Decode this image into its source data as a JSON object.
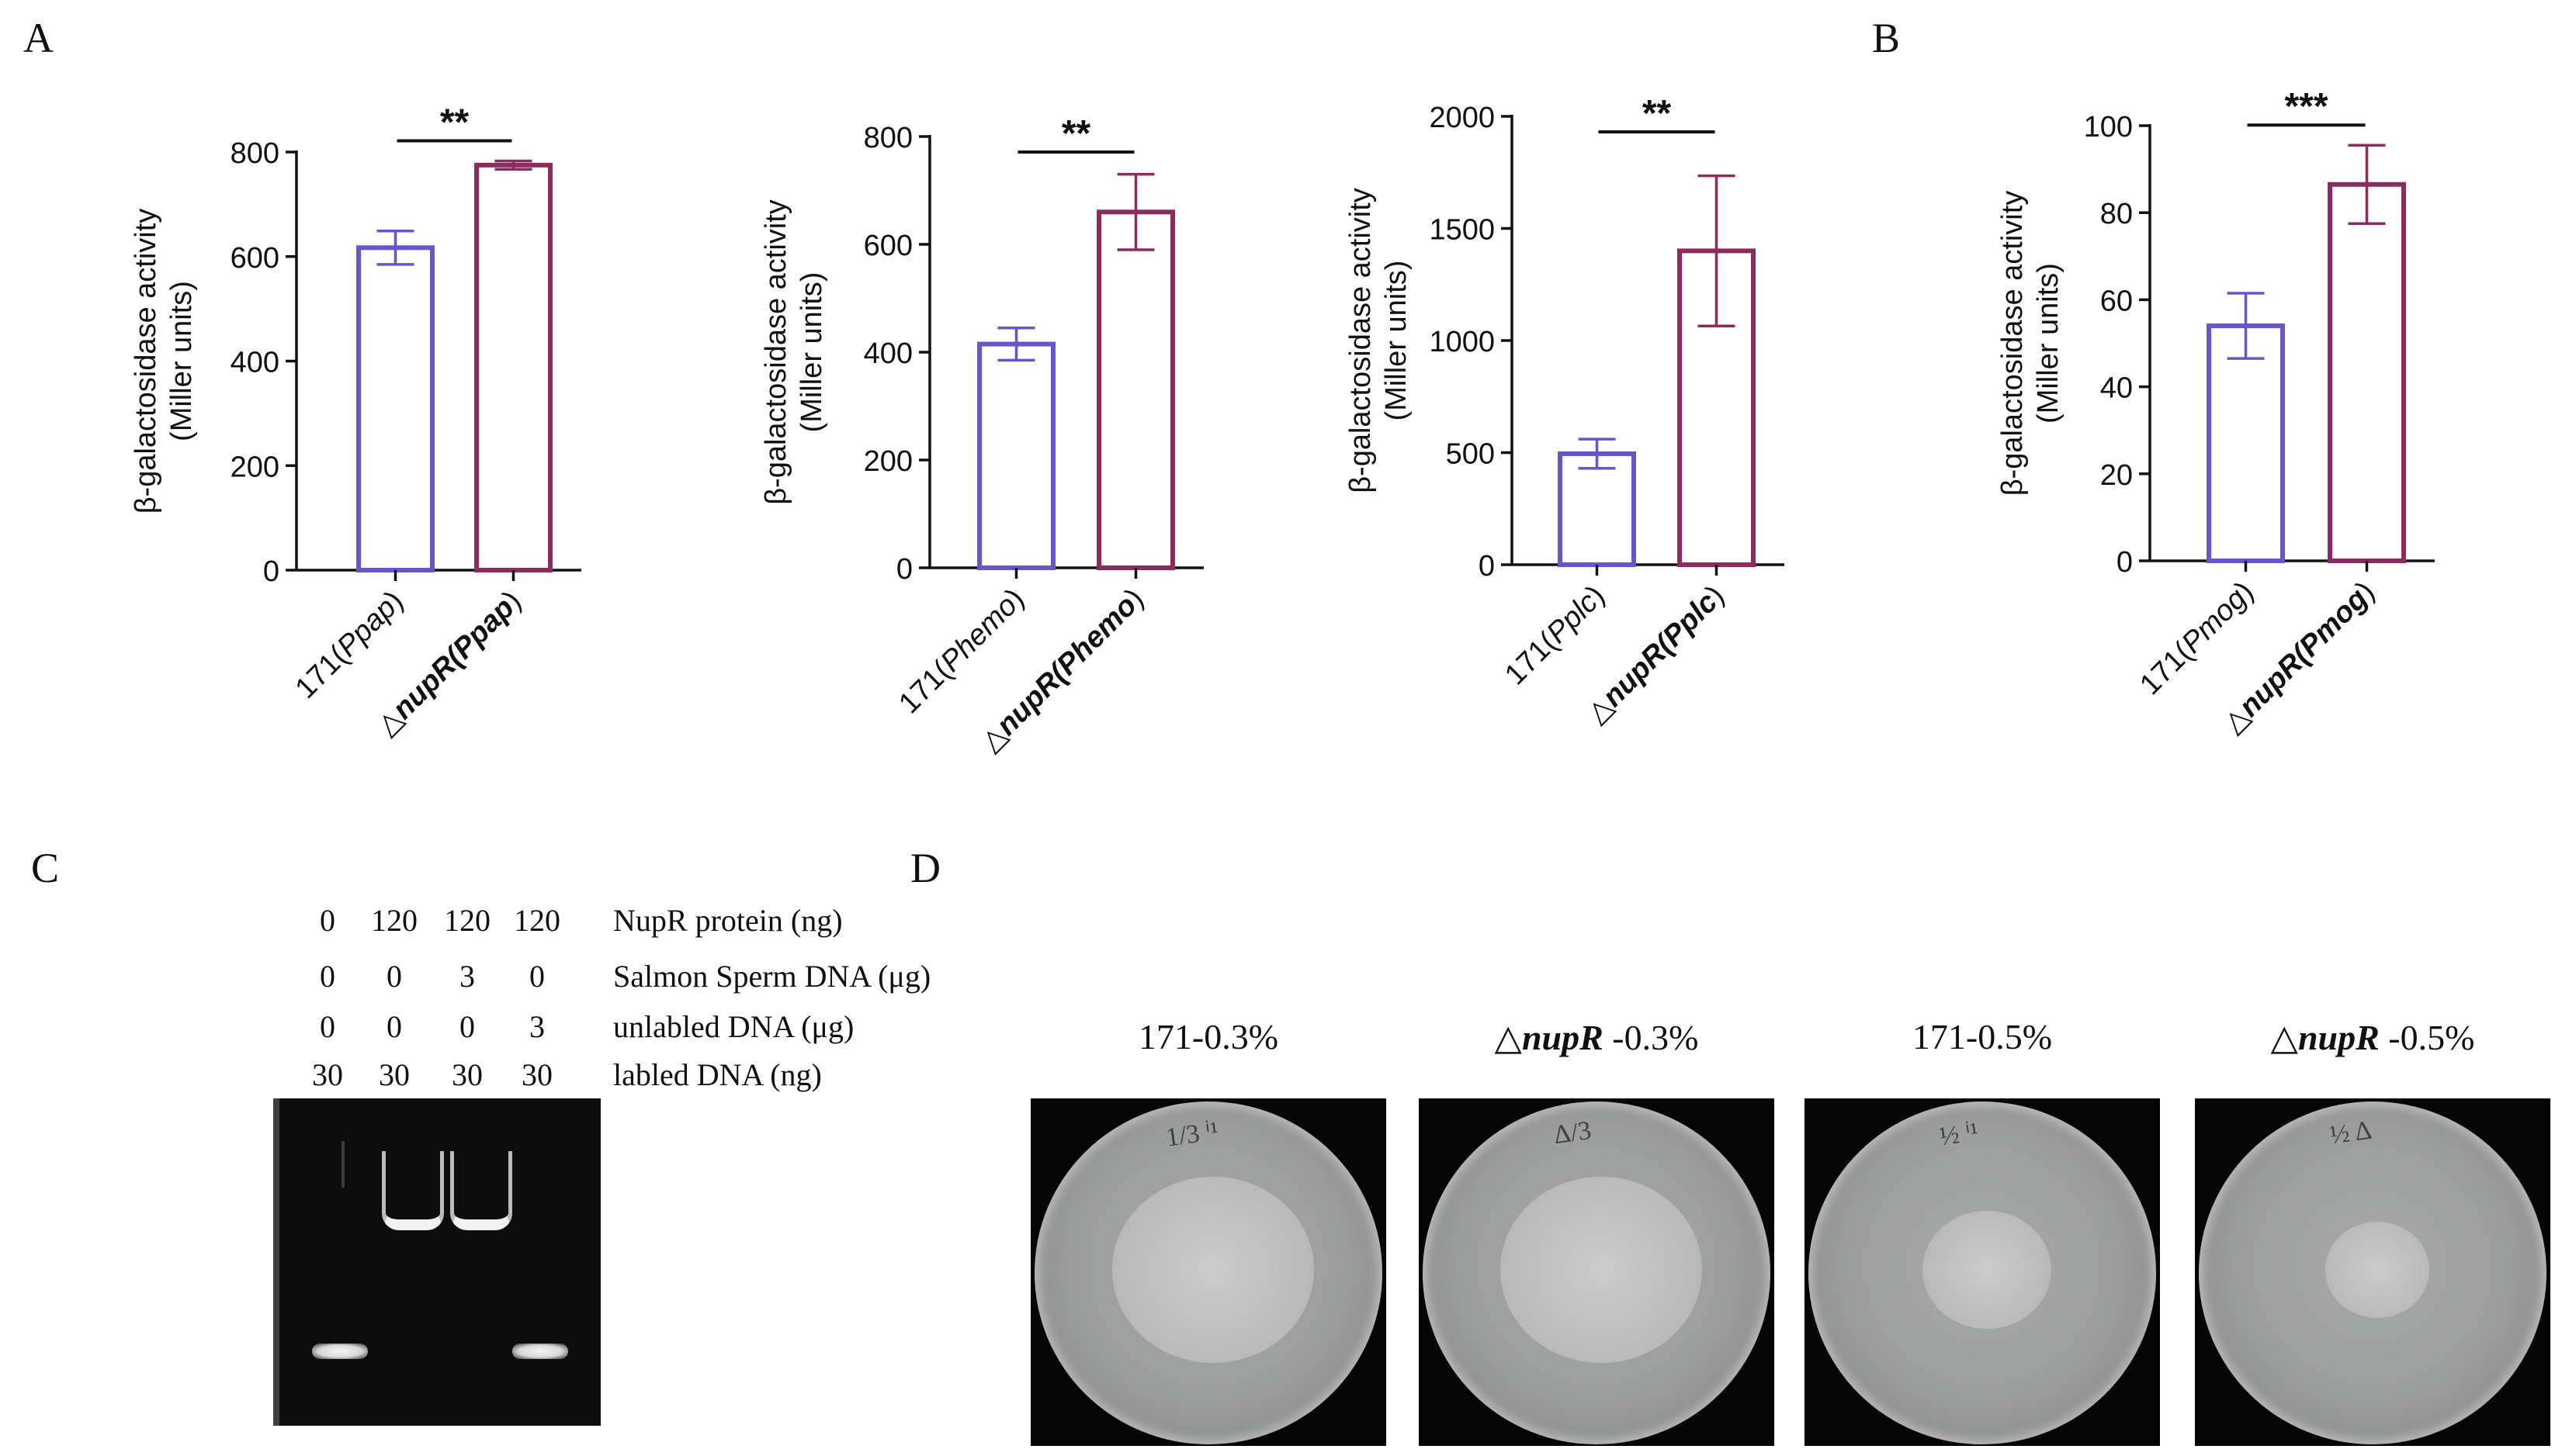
{
  "panel_letters": {
    "a": "A",
    "b": "B",
    "c": "C",
    "d": "D"
  },
  "colors": {
    "control": "#6655cc",
    "mutant": "#8b2b5e",
    "axis": "#111111"
  },
  "chart_data": [
    {
      "type": "bar",
      "panel": "A",
      "ylabel": [
        "β-galactosidase activity",
        "(Miller units)"
      ],
      "ylim": [
        0,
        800
      ],
      "yticks": [
        0,
        200,
        400,
        600,
        800
      ],
      "categories": [
        {
          "prefix": "171(",
          "italic": "Ppap",
          "suffix": ")"
        },
        {
          "prefix": "△",
          "italic": "nupR(Ppap",
          "suffix": ")"
        }
      ],
      "values": [
        617,
        775
      ],
      "errors": [
        32,
        8
      ],
      "significance": "**"
    },
    {
      "type": "bar",
      "panel": "A",
      "ylabel": [
        "β-galactosidase activity",
        "(Miller units)"
      ],
      "ylim": [
        0,
        800
      ],
      "yticks": [
        0,
        200,
        400,
        600,
        800
      ],
      "categories": [
        {
          "prefix": "171(",
          "italic": "Phemo",
          "suffix": ")"
        },
        {
          "prefix": "△",
          "italic": "nupR(Phemo",
          "suffix": ")"
        }
      ],
      "values": [
        415,
        660
      ],
      "errors": [
        30,
        70
      ],
      "significance": "**"
    },
    {
      "type": "bar",
      "panel": "A",
      "ylabel": [
        "β-galactosidase activity",
        "(Miller units)"
      ],
      "ylim": [
        0,
        2000
      ],
      "yticks": [
        0,
        500,
        1000,
        1500,
        2000
      ],
      "categories": [
        {
          "prefix": "171(",
          "italic": "Pplc",
          "suffix": ")"
        },
        {
          "prefix": "△",
          "italic": "nupR(Pplc",
          "suffix": ")"
        }
      ],
      "values": [
        495,
        1400
      ],
      "errors": [
        65,
        335
      ],
      "significance": "**"
    },
    {
      "type": "bar",
      "panel": "B",
      "ylabel": [
        "β-galactosidase activity",
        "(Miller units)"
      ],
      "ylim": [
        0,
        100
      ],
      "yticks": [
        0,
        20,
        40,
        60,
        80,
        100
      ],
      "categories": [
        {
          "prefix": "171(",
          "italic": "Pmog",
          "suffix": ")"
        },
        {
          "prefix": "△",
          "italic": "nupR(Pmog",
          "suffix": ")"
        }
      ],
      "values": [
        54,
        86.5
      ],
      "errors": [
        7.5,
        9
      ],
      "significance": "***"
    }
  ],
  "emsa": {
    "rows": [
      {
        "values": [
          "0",
          "120",
          "120",
          "120"
        ],
        "label": "NupR protein (ng)"
      },
      {
        "values": [
          "0",
          "0",
          "3",
          "0"
        ],
        "label": "Salmon Sperm DNA (μg)"
      },
      {
        "values": [
          "0",
          "0",
          "0",
          "3"
        ],
        "label": "unlabled DNA (μg)"
      },
      {
        "values": [
          "30",
          "30",
          "30",
          "30"
        ],
        "label": "labled DNA  (ng)"
      }
    ],
    "bands": [
      {
        "lane": 1,
        "kind": "free"
      },
      {
        "lane": 2,
        "kind": "shift"
      },
      {
        "lane": 3,
        "kind": "shift"
      },
      {
        "lane": 4,
        "kind": "free"
      }
    ]
  },
  "plates": [
    {
      "prefix": "171-0.3%",
      "italic": "",
      "suffix": "",
      "colony_size": 0.58,
      "mark": "1/3  ⁱ¹"
    },
    {
      "prefix": "△",
      "italic": "nupR",
      "suffix": " -0.3%",
      "colony_size": 0.58,
      "mark": "Δ/3"
    },
    {
      "prefix": "171-0.5%",
      "italic": "",
      "suffix": "",
      "colony_size": 0.37,
      "mark": "½  ⁱ¹"
    },
    {
      "prefix": "△",
      "italic": "nupR",
      "suffix": " -0.5%",
      "colony_size": 0.3,
      "mark": "½  Δ"
    }
  ]
}
